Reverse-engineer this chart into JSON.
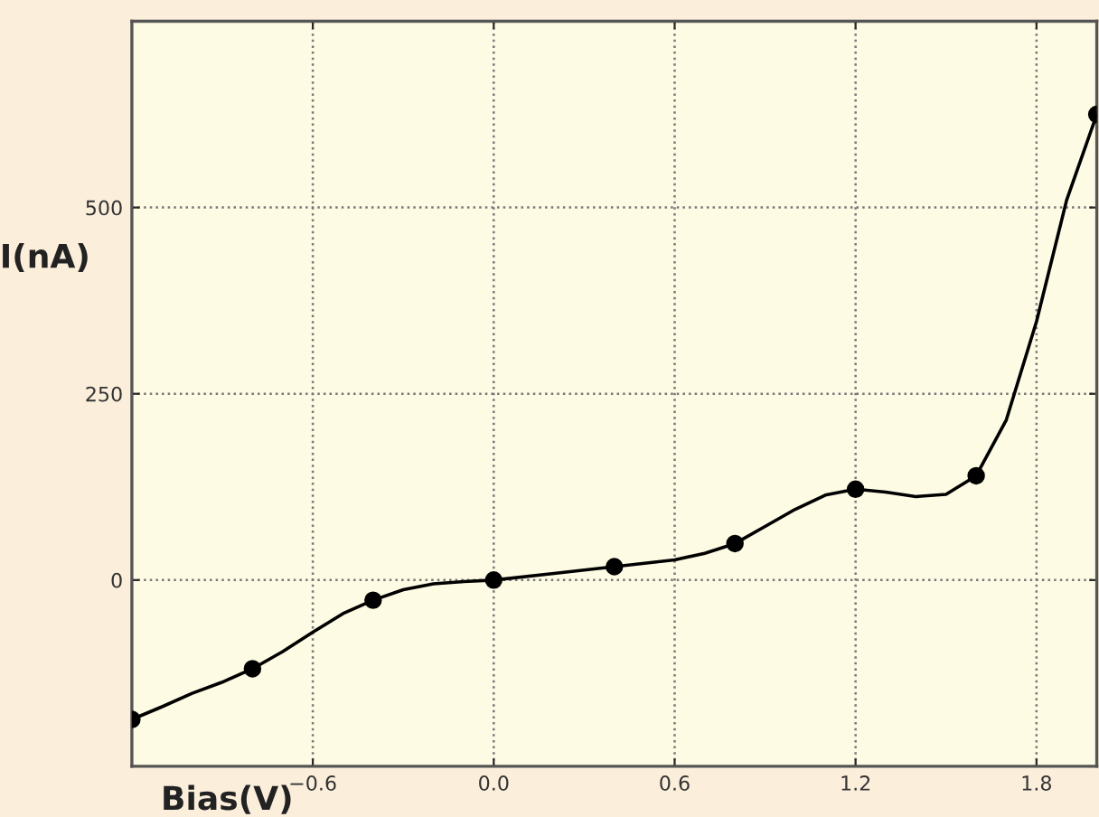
{
  "chart_data": {
    "type": "scatter",
    "xlabel": "Bias(V)",
    "ylabel": "I(nA)",
    "series": [
      {
        "type": "line",
        "color": "#000000",
        "x": [
          -1.2,
          -1.1,
          -1.0,
          -0.9,
          -0.8,
          -0.7,
          -0.6,
          -0.5,
          -0.4,
          -0.3,
          -0.2,
          -0.1,
          0.0,
          0.2,
          0.4,
          0.6,
          0.7,
          0.8,
          0.9,
          1.0,
          1.1,
          1.2,
          1.3,
          1.4,
          1.5,
          1.6,
          1.7,
          1.8,
          1.9,
          2.0
        ],
        "values": [
          -187,
          -170,
          -152,
          -137,
          -119,
          -96,
          -70,
          -45,
          -27,
          -13,
          -5,
          -2,
          0,
          9,
          18,
          27,
          36,
          49,
          72,
          95,
          114,
          122,
          118,
          112,
          115,
          140,
          215,
          347,
          510,
          625
        ]
      },
      {
        "color": "#000000",
        "marker": "circle",
        "x": [
          -1.2,
          -0.8,
          -0.4,
          0.0,
          0.4,
          0.8,
          1.2,
          1.6,
          2.0
        ],
        "values": [
          -187,
          -119,
          -27,
          0,
          18,
          49,
          122,
          140,
          625
        ]
      }
    ],
    "xlim": [
      -1.2,
      2.0
    ],
    "ylim": [
      -250,
      750
    ],
    "xticks": [
      {
        "value": -0.6,
        "label": "−0.6"
      },
      {
        "value": 0.0,
        "label": "0.0"
      },
      0.6,
      1.2,
      1.8
    ],
    "yticks": [
      0,
      250,
      500
    ],
    "grid": true,
    "line_style": "solid"
  }
}
